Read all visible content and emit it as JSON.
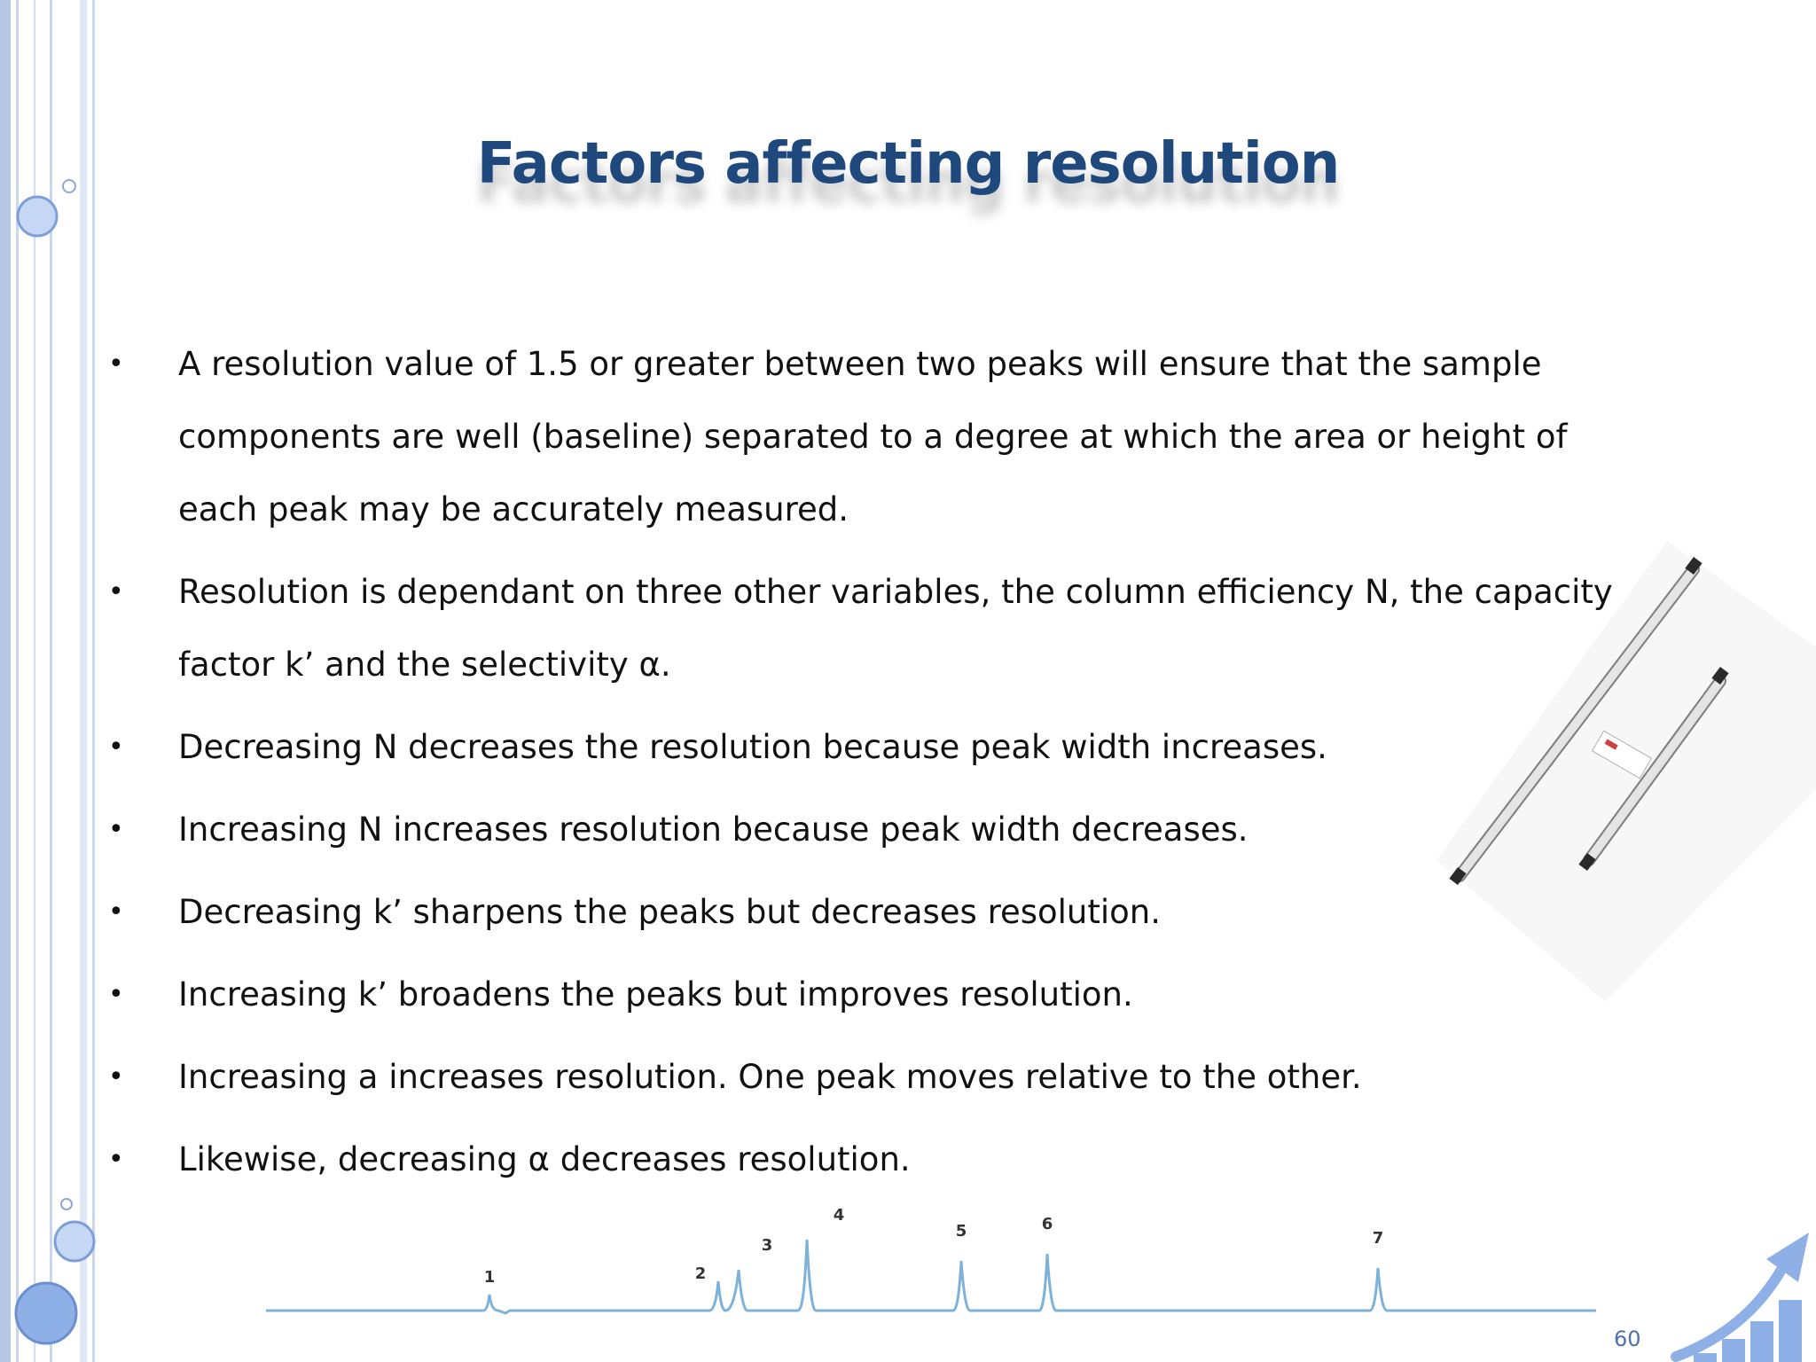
{
  "slide": {
    "title": "Factors affecting resolution",
    "bullets": [
      "A resolution value of 1.5 or greater between two peaks will ensure that the sample components are well (baseline) separated to a degree at which the area or height of each peak may be accurately measured.",
      "Resolution is dependant on three other variables, the column efficiency N, the capacity factor k’ and the selectivity α.",
      "Decreasing N decreases the resolution because peak width increases.",
      "Increasing N increases resolution because peak width decreases.",
      "Decreasing k’ sharpens the peaks but decreases resolution.",
      "Increasing k’ broadens the peaks but improves resolution.",
      "Increasing a increases resolution. One peak moves relative to the other.",
      "Likewise, decreasing α decreases resolution."
    ],
    "bullet_symbol": "•",
    "page_number": "60"
  },
  "chromatogram": {
    "peak_labels": [
      "1",
      "2",
      "3",
      "4",
      "5",
      "6",
      "7"
    ]
  },
  "colors": {
    "title": "#1f497d",
    "text": "#111111",
    "accent_blue": "#8fb0e6",
    "trace": "#7fb2d8"
  }
}
